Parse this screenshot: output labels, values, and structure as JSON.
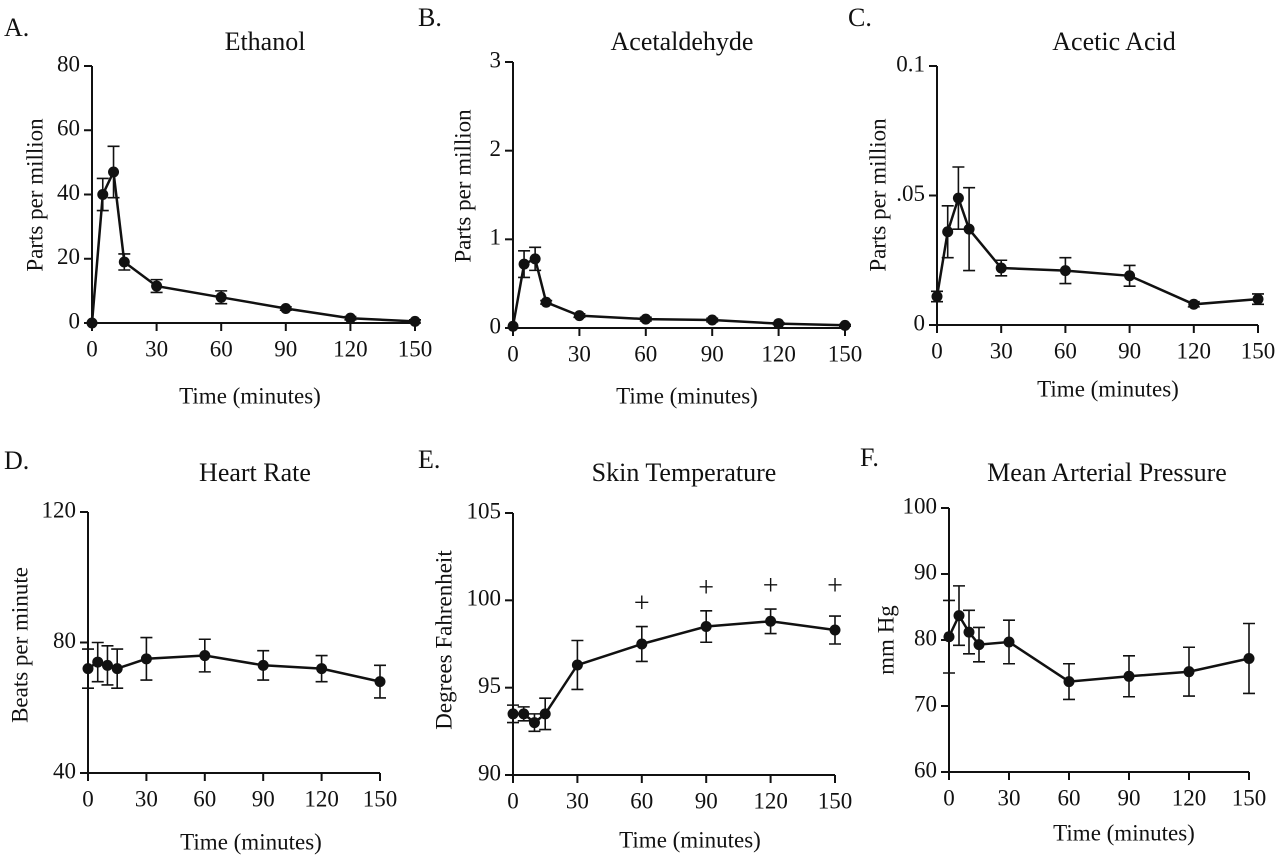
{
  "colors": {
    "ink": "#111111",
    "background": "#ffffff"
  },
  "chart_data": [
    {
      "panel": "A.",
      "type": "line",
      "title": "Ethanol",
      "xlabel": "Time (minutes)",
      "ylabel": "Parts per million",
      "xlim": [
        0,
        150
      ],
      "ylim": [
        0,
        80
      ],
      "xticks": [
        0,
        30,
        60,
        90,
        120,
        150
      ],
      "xtick_labels": [
        "0",
        "30",
        "60",
        "90",
        "120",
        "150"
      ],
      "yticks": [
        0,
        20,
        40,
        60,
        80
      ],
      "ytick_labels": [
        "0",
        "20",
        "40",
        "60",
        "80"
      ],
      "x": [
        0,
        5,
        10,
        15,
        30,
        60,
        90,
        120,
        150
      ],
      "y": [
        0,
        40,
        47,
        19,
        11.5,
        8,
        4.5,
        1.5,
        0.5
      ],
      "err": [
        0,
        5,
        8,
        2.5,
        2,
        2,
        0.5,
        0.5,
        0.5
      ],
      "markers": []
    },
    {
      "panel": "B.",
      "type": "line",
      "title": "Acetaldehyde",
      "xlabel": "Time (minutes)",
      "ylabel": "Parts per million",
      "xlim": [
        0,
        150
      ],
      "ylim": [
        0,
        3
      ],
      "xticks": [
        0,
        30,
        60,
        90,
        120,
        150
      ],
      "xtick_labels": [
        "0",
        "30",
        "60",
        "90",
        "120",
        "150"
      ],
      "yticks": [
        0,
        1,
        2,
        3
      ],
      "ytick_labels": [
        "0",
        "1",
        "2",
        "3"
      ],
      "x": [
        0,
        5,
        10,
        15,
        30,
        60,
        90,
        120,
        150
      ],
      "y": [
        0.02,
        0.72,
        0.78,
        0.29,
        0.14,
        0.1,
        0.09,
        0.05,
        0.03
      ],
      "err": [
        0,
        0.15,
        0.13,
        0.02,
        0.02,
        0.02,
        0.02,
        0.01,
        0.01
      ],
      "markers": []
    },
    {
      "panel": "C.",
      "type": "line",
      "title": "Acetic Acid",
      "xlabel": "Time (minutes)",
      "ylabel": "Parts per million",
      "xlim": [
        0,
        150
      ],
      "ylim": [
        0,
        0.1
      ],
      "xticks": [
        0,
        30,
        60,
        90,
        120,
        150
      ],
      "xtick_labels": [
        "0",
        "30",
        "60",
        "90",
        "120",
        "150"
      ],
      "yticks": [
        0,
        0.05,
        0.1
      ],
      "ytick_labels": [
        "0",
        ".05",
        "0.1"
      ],
      "x": [
        0,
        5,
        10,
        15,
        30,
        60,
        90,
        120,
        150
      ],
      "y": [
        0.011,
        0.036,
        0.049,
        0.037,
        0.022,
        0.021,
        0.019,
        0.008,
        0.01
      ],
      "err": [
        0.002,
        0.01,
        0.012,
        0.016,
        0.003,
        0.005,
        0.004,
        0.001,
        0.002
      ],
      "markers": []
    },
    {
      "panel": "D.",
      "type": "line",
      "title": "Heart Rate",
      "xlabel": "Time (minutes)",
      "ylabel": "Beats per minute",
      "xlim": [
        0,
        150
      ],
      "ylim": [
        40,
        120
      ],
      "xticks": [
        0,
        30,
        60,
        90,
        120,
        150
      ],
      "xtick_labels": [
        "0",
        "30",
        "60",
        "90",
        "120",
        "150"
      ],
      "yticks": [
        40,
        80,
        120
      ],
      "ytick_labels": [
        "40",
        "80",
        "120"
      ],
      "x": [
        0,
        5,
        10,
        15,
        30,
        60,
        90,
        120,
        150
      ],
      "y": [
        72,
        74,
        73,
        72,
        75,
        76,
        73,
        72,
        68
      ],
      "err": [
        6,
        6,
        6,
        6,
        6.5,
        5,
        4.5,
        4,
        5
      ],
      "markers": []
    },
    {
      "panel": "E.",
      "type": "line",
      "title": "Skin Temperature",
      "xlabel": "Time (minutes)",
      "ylabel": "Degrees Fahrenheit",
      "xlim": [
        0,
        150
      ],
      "ylim": [
        90,
        105
      ],
      "xticks": [
        0,
        30,
        60,
        90,
        120,
        150
      ],
      "xtick_labels": [
        "0",
        "30",
        "60",
        "90",
        "120",
        "150"
      ],
      "yticks": [
        90,
        95,
        100,
        105
      ],
      "ytick_labels": [
        "90",
        "95",
        "100",
        "105"
      ],
      "x": [
        0,
        5,
        10,
        15,
        30,
        60,
        90,
        120,
        150
      ],
      "y": [
        93.5,
        93.5,
        93,
        93.5,
        96.3,
        97.5,
        98.5,
        98.8,
        98.3
      ],
      "err": [
        0.5,
        0.4,
        0.5,
        0.9,
        1.4,
        1.0,
        0.9,
        0.7,
        0.8
      ],
      "markers": [
        {
          "x": 60,
          "y": 99.7,
          "text": "+"
        },
        {
          "x": 90,
          "y": 100.6,
          "text": "+"
        },
        {
          "x": 120,
          "y": 100.7,
          "text": "+"
        },
        {
          "x": 150,
          "y": 100.7,
          "text": "+"
        }
      ]
    },
    {
      "panel": "F.",
      "type": "line",
      "title": "Mean Arterial Pressure",
      "xlabel": "Time (minutes)",
      "ylabel": "mm Hg",
      "xlim": [
        0,
        150
      ],
      "ylim": [
        60,
        100
      ],
      "xticks": [
        0,
        30,
        60,
        90,
        120,
        150
      ],
      "xtick_labels": [
        "0",
        "30",
        "60",
        "90",
        "120",
        "150"
      ],
      "yticks": [
        60,
        70,
        80,
        90,
        100
      ],
      "ytick_labels": [
        "60",
        "70",
        "80",
        "90",
        "100"
      ],
      "x": [
        0,
        5,
        10,
        15,
        30,
        60,
        90,
        120,
        150
      ],
      "y": [
        80.5,
        83.7,
        81.2,
        79.3,
        79.7,
        73.7,
        74.5,
        75.2,
        77.2
      ],
      "err": [
        5.5,
        4.5,
        3.3,
        2.6,
        3.3,
        2.7,
        3.1,
        3.7,
        5.3
      ],
      "markers": []
    }
  ]
}
